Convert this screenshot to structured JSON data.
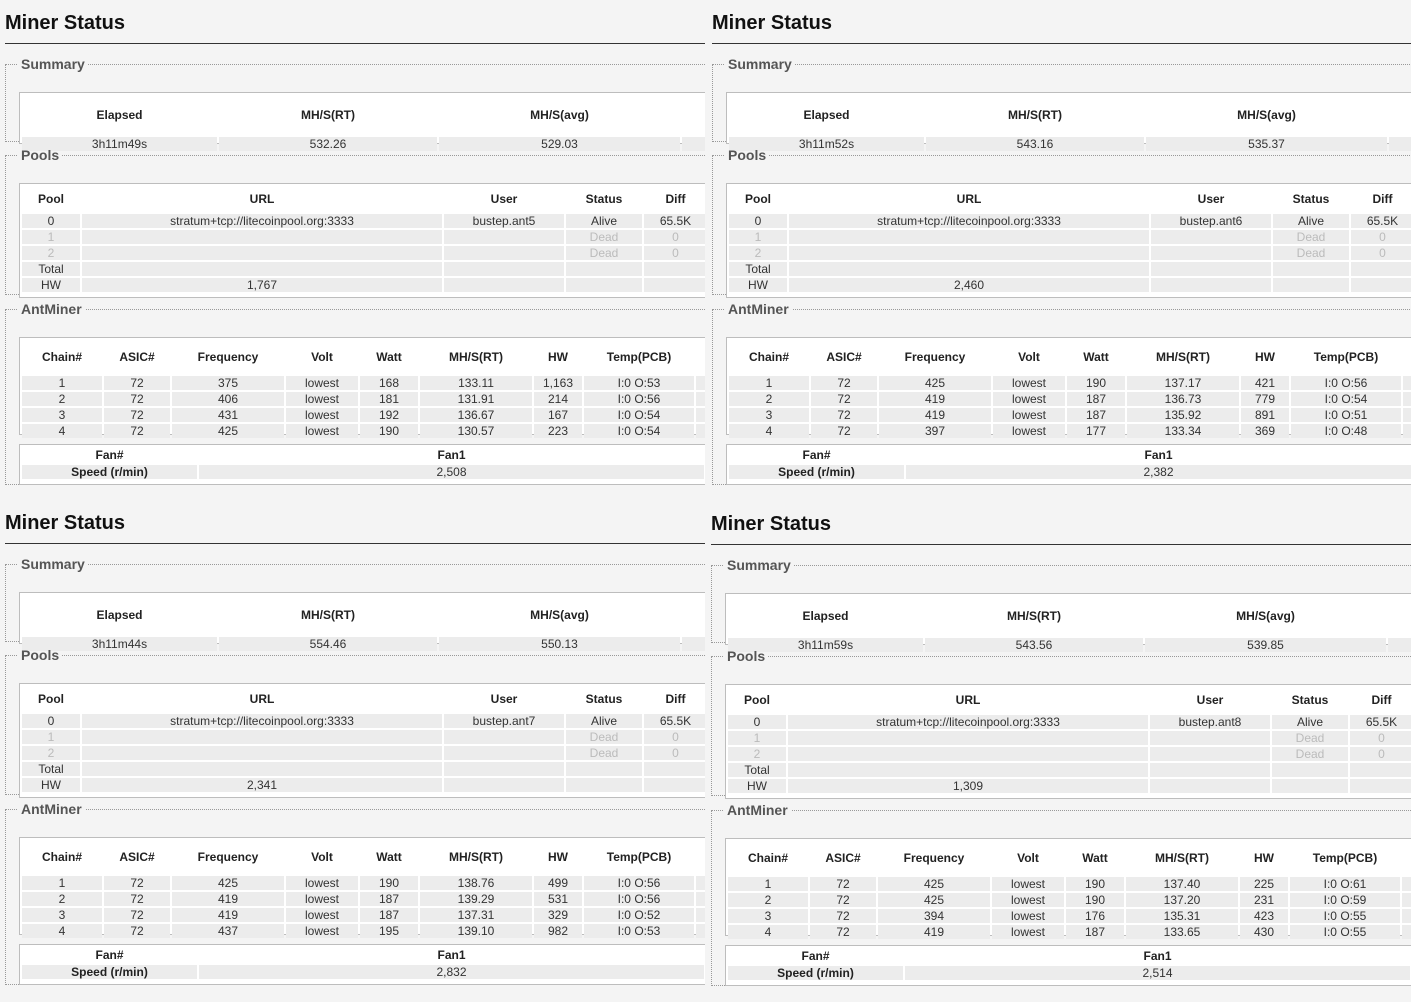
{
  "labels": {
    "title": "Miner Status",
    "summary": "Summary",
    "pools": "Pools",
    "antminer": "AntMiner",
    "sum_headers": [
      "Elapsed",
      "MH/S(RT)",
      "MH/S(avg)"
    ],
    "pool_headers": [
      "Pool",
      "URL",
      "User",
      "Status",
      "Diff"
    ],
    "chain_headers": [
      "Chain#",
      "ASIC#",
      "Frequency",
      "Volt",
      "Watt",
      "MH/S(RT)",
      "HW",
      "Temp(PCB)"
    ],
    "fan_header_label": "Fan#",
    "fan_header_value": "Fan1",
    "fan_row_label": "Speed (r/min)",
    "total": "Total",
    "hw": "HW"
  },
  "miners": [
    {
      "summary": {
        "elapsed": "3h11m49s",
        "rt": "532.26",
        "avg": "529.03"
      },
      "pools": [
        {
          "pool": "0",
          "url": "stratum+tcp://litecoinpool.org:3333",
          "user": "bustep.ant5",
          "status": "Alive",
          "diff": "65.5K"
        },
        {
          "pool": "1",
          "url": "",
          "user": "",
          "status": "Dead",
          "diff": "0"
        },
        {
          "pool": "2",
          "url": "",
          "user": "",
          "status": "Dead",
          "diff": "0"
        }
      ],
      "hw_total": "1,767",
      "chains": [
        {
          "chain": "1",
          "asic": "72",
          "freq": "375",
          "volt": "lowest",
          "watt": "168",
          "rt": "133.11",
          "hw": "1,163",
          "temp": "I:0 O:53"
        },
        {
          "chain": "2",
          "asic": "72",
          "freq": "406",
          "volt": "lowest",
          "watt": "181",
          "rt": "131.91",
          "hw": "214",
          "temp": "I:0 O:56"
        },
        {
          "chain": "3",
          "asic": "72",
          "freq": "431",
          "volt": "lowest",
          "watt": "192",
          "rt": "136.67",
          "hw": "167",
          "temp": "I:0 O:54"
        },
        {
          "chain": "4",
          "asic": "72",
          "freq": "425",
          "volt": "lowest",
          "watt": "190",
          "rt": "130.57",
          "hw": "223",
          "temp": "I:0 O:54"
        }
      ],
      "fan_speed": "2,508"
    },
    {
      "summary": {
        "elapsed": "3h11m52s",
        "rt": "543.16",
        "avg": "535.37"
      },
      "pools": [
        {
          "pool": "0",
          "url": "stratum+tcp://litecoinpool.org:3333",
          "user": "bustep.ant6",
          "status": "Alive",
          "diff": "65.5K"
        },
        {
          "pool": "1",
          "url": "",
          "user": "",
          "status": "Dead",
          "diff": "0"
        },
        {
          "pool": "2",
          "url": "",
          "user": "",
          "status": "Dead",
          "diff": "0"
        }
      ],
      "hw_total": "2,460",
      "chains": [
        {
          "chain": "1",
          "asic": "72",
          "freq": "425",
          "volt": "lowest",
          "watt": "190",
          "rt": "137.17",
          "hw": "421",
          "temp": "I:0 O:56"
        },
        {
          "chain": "2",
          "asic": "72",
          "freq": "419",
          "volt": "lowest",
          "watt": "187",
          "rt": "136.73",
          "hw": "779",
          "temp": "I:0 O:54"
        },
        {
          "chain": "3",
          "asic": "72",
          "freq": "419",
          "volt": "lowest",
          "watt": "187",
          "rt": "135.92",
          "hw": "891",
          "temp": "I:0 O:51"
        },
        {
          "chain": "4",
          "asic": "72",
          "freq": "397",
          "volt": "lowest",
          "watt": "177",
          "rt": "133.34",
          "hw": "369",
          "temp": "I:0 O:48"
        }
      ],
      "fan_speed": "2,382"
    },
    {
      "summary": {
        "elapsed": "3h11m44s",
        "rt": "554.46",
        "avg": "550.13"
      },
      "pools": [
        {
          "pool": "0",
          "url": "stratum+tcp://litecoinpool.org:3333",
          "user": "bustep.ant7",
          "status": "Alive",
          "diff": "65.5K"
        },
        {
          "pool": "1",
          "url": "",
          "user": "",
          "status": "Dead",
          "diff": "0"
        },
        {
          "pool": "2",
          "url": "",
          "user": "",
          "status": "Dead",
          "diff": "0"
        }
      ],
      "hw_total": "2,341",
      "chains": [
        {
          "chain": "1",
          "asic": "72",
          "freq": "425",
          "volt": "lowest",
          "watt": "190",
          "rt": "138.76",
          "hw": "499",
          "temp": "I:0 O:56"
        },
        {
          "chain": "2",
          "asic": "72",
          "freq": "419",
          "volt": "lowest",
          "watt": "187",
          "rt": "139.29",
          "hw": "531",
          "temp": "I:0 O:56"
        },
        {
          "chain": "3",
          "asic": "72",
          "freq": "419",
          "volt": "lowest",
          "watt": "187",
          "rt": "137.31",
          "hw": "329",
          "temp": "I:0 O:52"
        },
        {
          "chain": "4",
          "asic": "72",
          "freq": "437",
          "volt": "lowest",
          "watt": "195",
          "rt": "139.10",
          "hw": "982",
          "temp": "I:0 O:53"
        }
      ],
      "fan_speed": "2,832"
    },
    {
      "summary": {
        "elapsed": "3h11m59s",
        "rt": "543.56",
        "avg": "539.85"
      },
      "pools": [
        {
          "pool": "0",
          "url": "stratum+tcp://litecoinpool.org:3333",
          "user": "bustep.ant8",
          "status": "Alive",
          "diff": "65.5K"
        },
        {
          "pool": "1",
          "url": "",
          "user": "",
          "status": "Dead",
          "diff": "0"
        },
        {
          "pool": "2",
          "url": "",
          "user": "",
          "status": "Dead",
          "diff": "0"
        }
      ],
      "hw_total": "1,309",
      "chains": [
        {
          "chain": "1",
          "asic": "72",
          "freq": "425",
          "volt": "lowest",
          "watt": "190",
          "rt": "137.40",
          "hw": "225",
          "temp": "I:0 O:61"
        },
        {
          "chain": "2",
          "asic": "72",
          "freq": "425",
          "volt": "lowest",
          "watt": "190",
          "rt": "137.20",
          "hw": "231",
          "temp": "I:0 O:59"
        },
        {
          "chain": "3",
          "asic": "72",
          "freq": "394",
          "volt": "lowest",
          "watt": "176",
          "rt": "135.31",
          "hw": "423",
          "temp": "I:0 O:55"
        },
        {
          "chain": "4",
          "asic": "72",
          "freq": "419",
          "volt": "lowest",
          "watt": "187",
          "rt": "133.65",
          "hw": "430",
          "temp": "I:0 O:55"
        }
      ],
      "fan_speed": "2,514"
    }
  ]
}
